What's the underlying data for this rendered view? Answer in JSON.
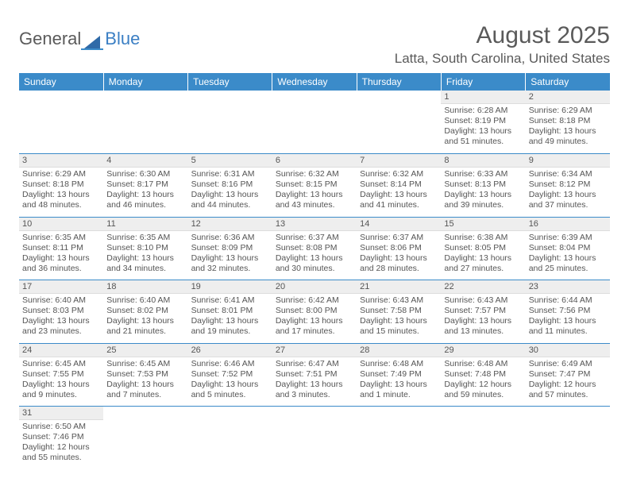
{
  "logo": {
    "text_general": "General",
    "text_blue": "Blue",
    "triangle_color": "#2f6aa8",
    "line_color": "#3b8bc9"
  },
  "title": "August 2025",
  "location": "Latta, South Carolina, United States",
  "header_bg": "#3b8bc9",
  "header_text_color": "#ffffff",
  "daynum_bg": "#eeeeee",
  "text_color": "#555555",
  "divider_color": "#3b8bc9",
  "columns": [
    "Sunday",
    "Monday",
    "Tuesday",
    "Wednesday",
    "Thursday",
    "Friday",
    "Saturday"
  ],
  "weeks": [
    [
      null,
      null,
      null,
      null,
      null,
      {
        "n": "1",
        "sr": "6:28 AM",
        "ss": "8:19 PM",
        "dl": "13 hours and 51 minutes."
      },
      {
        "n": "2",
        "sr": "6:29 AM",
        "ss": "8:18 PM",
        "dl": "13 hours and 49 minutes."
      }
    ],
    [
      {
        "n": "3",
        "sr": "6:29 AM",
        "ss": "8:18 PM",
        "dl": "13 hours and 48 minutes."
      },
      {
        "n": "4",
        "sr": "6:30 AM",
        "ss": "8:17 PM",
        "dl": "13 hours and 46 minutes."
      },
      {
        "n": "5",
        "sr": "6:31 AM",
        "ss": "8:16 PM",
        "dl": "13 hours and 44 minutes."
      },
      {
        "n": "6",
        "sr": "6:32 AM",
        "ss": "8:15 PM",
        "dl": "13 hours and 43 minutes."
      },
      {
        "n": "7",
        "sr": "6:32 AM",
        "ss": "8:14 PM",
        "dl": "13 hours and 41 minutes."
      },
      {
        "n": "8",
        "sr": "6:33 AM",
        "ss": "8:13 PM",
        "dl": "13 hours and 39 minutes."
      },
      {
        "n": "9",
        "sr": "6:34 AM",
        "ss": "8:12 PM",
        "dl": "13 hours and 37 minutes."
      }
    ],
    [
      {
        "n": "10",
        "sr": "6:35 AM",
        "ss": "8:11 PM",
        "dl": "13 hours and 36 minutes."
      },
      {
        "n": "11",
        "sr": "6:35 AM",
        "ss": "8:10 PM",
        "dl": "13 hours and 34 minutes."
      },
      {
        "n": "12",
        "sr": "6:36 AM",
        "ss": "8:09 PM",
        "dl": "13 hours and 32 minutes."
      },
      {
        "n": "13",
        "sr": "6:37 AM",
        "ss": "8:08 PM",
        "dl": "13 hours and 30 minutes."
      },
      {
        "n": "14",
        "sr": "6:37 AM",
        "ss": "8:06 PM",
        "dl": "13 hours and 28 minutes."
      },
      {
        "n": "15",
        "sr": "6:38 AM",
        "ss": "8:05 PM",
        "dl": "13 hours and 27 minutes."
      },
      {
        "n": "16",
        "sr": "6:39 AM",
        "ss": "8:04 PM",
        "dl": "13 hours and 25 minutes."
      }
    ],
    [
      {
        "n": "17",
        "sr": "6:40 AM",
        "ss": "8:03 PM",
        "dl": "13 hours and 23 minutes."
      },
      {
        "n": "18",
        "sr": "6:40 AM",
        "ss": "8:02 PM",
        "dl": "13 hours and 21 minutes."
      },
      {
        "n": "19",
        "sr": "6:41 AM",
        "ss": "8:01 PM",
        "dl": "13 hours and 19 minutes."
      },
      {
        "n": "20",
        "sr": "6:42 AM",
        "ss": "8:00 PM",
        "dl": "13 hours and 17 minutes."
      },
      {
        "n": "21",
        "sr": "6:43 AM",
        "ss": "7:58 PM",
        "dl": "13 hours and 15 minutes."
      },
      {
        "n": "22",
        "sr": "6:43 AM",
        "ss": "7:57 PM",
        "dl": "13 hours and 13 minutes."
      },
      {
        "n": "23",
        "sr": "6:44 AM",
        "ss": "7:56 PM",
        "dl": "13 hours and 11 minutes."
      }
    ],
    [
      {
        "n": "24",
        "sr": "6:45 AM",
        "ss": "7:55 PM",
        "dl": "13 hours and 9 minutes."
      },
      {
        "n": "25",
        "sr": "6:45 AM",
        "ss": "7:53 PM",
        "dl": "13 hours and 7 minutes."
      },
      {
        "n": "26",
        "sr": "6:46 AM",
        "ss": "7:52 PM",
        "dl": "13 hours and 5 minutes."
      },
      {
        "n": "27",
        "sr": "6:47 AM",
        "ss": "7:51 PM",
        "dl": "13 hours and 3 minutes."
      },
      {
        "n": "28",
        "sr": "6:48 AM",
        "ss": "7:49 PM",
        "dl": "13 hours and 1 minute."
      },
      {
        "n": "29",
        "sr": "6:48 AM",
        "ss": "7:48 PM",
        "dl": "12 hours and 59 minutes."
      },
      {
        "n": "30",
        "sr": "6:49 AM",
        "ss": "7:47 PM",
        "dl": "12 hours and 57 minutes."
      }
    ],
    [
      {
        "n": "31",
        "sr": "6:50 AM",
        "ss": "7:46 PM",
        "dl": "12 hours and 55 minutes."
      },
      null,
      null,
      null,
      null,
      null,
      null
    ]
  ],
  "labels": {
    "sunrise": "Sunrise:",
    "sunset": "Sunset:",
    "daylight": "Daylight:"
  }
}
